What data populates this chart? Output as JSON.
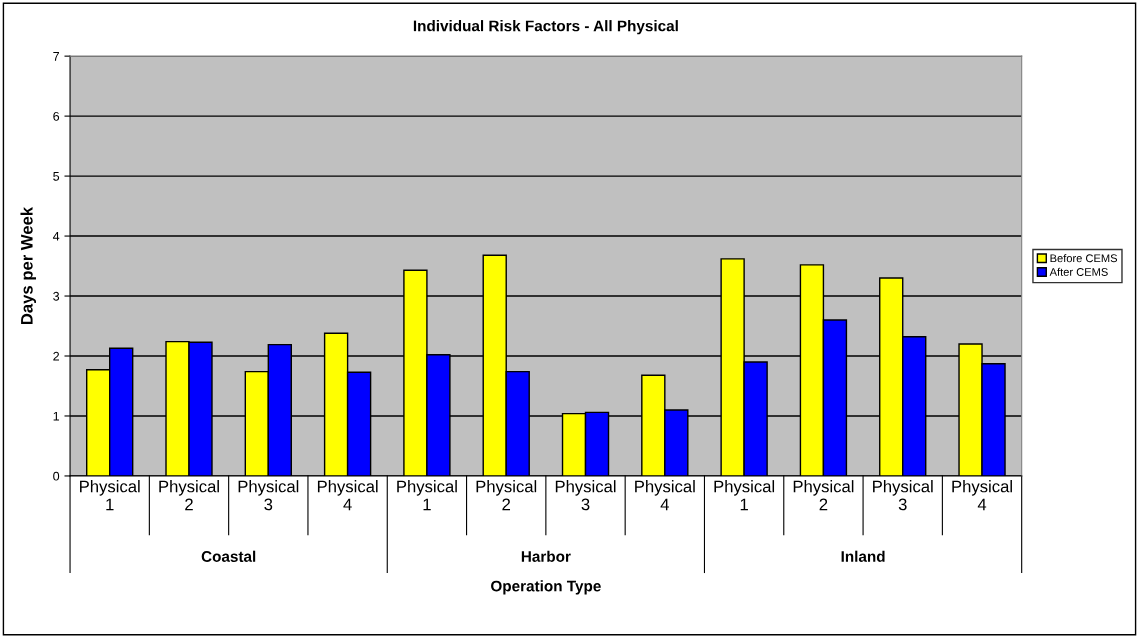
{
  "chart_data": {
    "type": "bar",
    "title": "Individual Risk Factors - All Physical",
    "xlabel": "Operation Type",
    "ylabel": "Days per Week",
    "categories": [
      "Physical\n1",
      "Physical\n2",
      "Physical\n3",
      "Physical\n4",
      "Physical\n1",
      "Physical\n2",
      "Physical\n3",
      "Physical\n4",
      "Physical\n1",
      "Physical\n2",
      "Physical\n3",
      "Physical\n4"
    ],
    "series": [
      {
        "name": "Before CEMS",
        "color": "#ffff00",
        "values": [
          1.77,
          2.24,
          1.74,
          2.38,
          3.43,
          3.68,
          1.04,
          1.68,
          3.62,
          3.52,
          3.3,
          2.2
        ]
      },
      {
        "name": "After CEMS",
        "color": "#0000ff",
        "values": [
          2.13,
          2.23,
          2.19,
          1.73,
          2.02,
          1.74,
          1.06,
          1.1,
          1.9,
          2.6,
          2.32,
          1.87
        ]
      }
    ],
    "annotations": [
      "Coastal",
      "Harbor",
      "Inland"
    ],
    "ylim": [
      0,
      7
    ],
    "yticks": [
      0,
      1,
      2,
      3,
      4,
      5,
      6,
      7
    ],
    "grid": "y",
    "legend": "right"
  }
}
